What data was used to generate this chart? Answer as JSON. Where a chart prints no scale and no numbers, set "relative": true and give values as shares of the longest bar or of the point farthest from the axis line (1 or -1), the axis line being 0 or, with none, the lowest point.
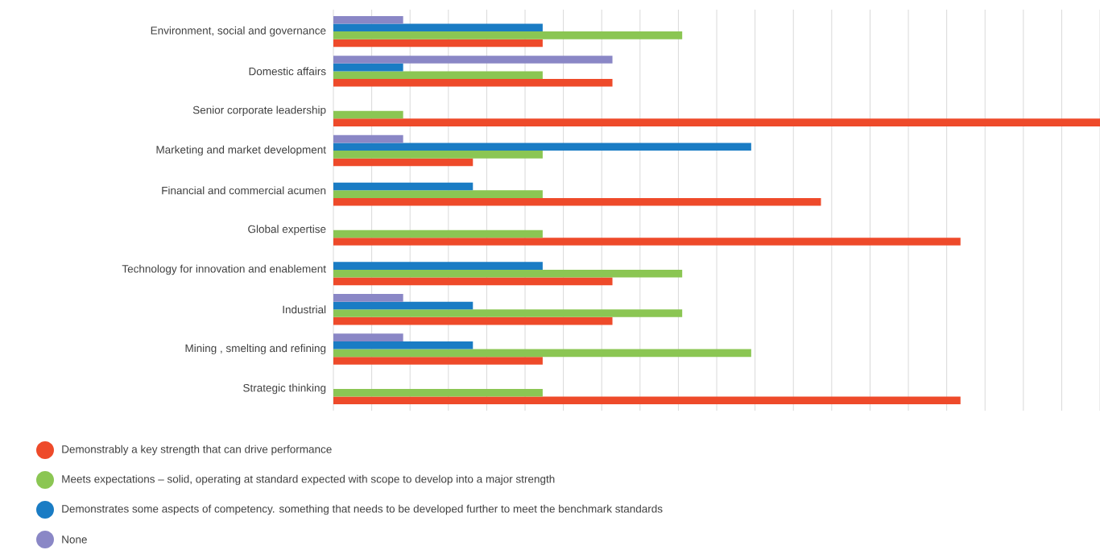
{
  "chart_data": {
    "type": "bar",
    "orientation": "horizontal",
    "relative": true,
    "grid": "x",
    "legend": "bottom",
    "marker": "circle",
    "categories": [
      "Environment, social and governance",
      "Domestic affairs",
      "Senior corporate leadership",
      "Marketing and market development",
      "Financial and commercial acumen",
      "Global expertise",
      "Technology for innovation and enablement",
      "Industrial",
      "Mining , smelting and refining",
      "Strategic thinking"
    ],
    "series": [
      {
        "name": "Demonstrably a key strength that can drive performance",
        "color": "#ee4a2a",
        "values": [
          0.273,
          0.364,
          1,
          0.182,
          0.636,
          0.818,
          0.364,
          0.364,
          0.273,
          0.818
        ]
      },
      {
        "name": "Meets expectations – solid, operating at standard expected with scope to develop into a major strength",
        "color": "#8bc653",
        "values": [
          0.455,
          0.273,
          0.091,
          0.273,
          0.273,
          0.273,
          0.455,
          0.455,
          0.545,
          0.273
        ]
      },
      {
        "name": "Demonstrates some aspects of competency. something that needs to be developed further to meet the benchmark standards",
        "color": "#1a7cc4",
        "values": [
          0.273,
          0.091,
          null,
          0.545,
          0.182,
          null,
          0.273,
          0.182,
          0.182,
          null
        ]
      },
      {
        "name": "None",
        "color": "#8a87c6",
        "values": [
          0.091,
          0.364,
          null,
          0.091,
          null,
          null,
          null,
          0.091,
          0.091,
          null
        ]
      }
    ]
  }
}
